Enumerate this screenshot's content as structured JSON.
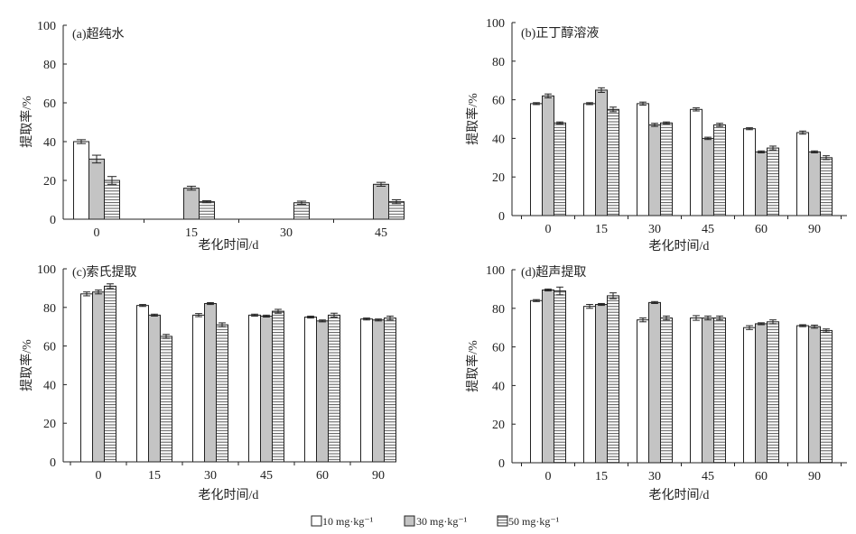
{
  "legend": [
    {
      "label": "10 mg·kg⁻¹",
      "pattern": "white"
    },
    {
      "label": "30 mg·kg⁻¹",
      "pattern": "gray"
    },
    {
      "label": "50 mg·kg⁻¹",
      "pattern": "hatch"
    }
  ],
  "colors": {
    "bar_stroke": "#222222",
    "gray_fill": "#c4c4c4",
    "white_fill": "#ffffff",
    "hatch_line": "#444444"
  },
  "chart_data": [
    {
      "type": "bar",
      "title": "(a)超纯水",
      "xlabel": "老化时间/d",
      "ylabel": "提取率/%",
      "ylim": [
        0,
        100
      ],
      "yticks": [
        0,
        20,
        40,
        60,
        80,
        100
      ],
      "categories": [
        "0",
        "15",
        "30",
        "45"
      ],
      "series": [
        {
          "name": "10 mg·kg⁻¹",
          "values": [
            40,
            null,
            null,
            null
          ],
          "errors": [
            1,
            0,
            0,
            0
          ]
        },
        {
          "name": "30 mg·kg⁻¹",
          "values": [
            31,
            16,
            null,
            18
          ],
          "errors": [
            2,
            1,
            0,
            1
          ]
        },
        {
          "name": "50 mg·kg⁻¹",
          "values": [
            20,
            9,
            8.5,
            9
          ],
          "errors": [
            2,
            0.5,
            0.8,
            1
          ]
        }
      ]
    },
    {
      "type": "bar",
      "title": "(b)正丁醇溶液",
      "xlabel": "老化时间/d",
      "ylabel": "提取率/%",
      "ylim": [
        0,
        100
      ],
      "yticks": [
        0,
        20,
        40,
        60,
        80,
        100
      ],
      "categories": [
        "0",
        "15",
        "30",
        "45",
        "60",
        "90"
      ],
      "series": [
        {
          "name": "10 mg·kg⁻¹",
          "values": [
            58,
            58,
            58,
            55,
            45,
            43
          ],
          "errors": [
            0.5,
            0.5,
            0.8,
            0.8,
            0.5,
            0.8
          ]
        },
        {
          "name": "30 mg·kg⁻¹",
          "values": [
            62,
            65,
            47,
            40,
            33,
            33
          ],
          "errors": [
            1,
            1.2,
            0.8,
            0.6,
            0.5,
            0.5
          ]
        },
        {
          "name": "50 mg·kg⁻¹",
          "values": [
            48,
            55,
            48,
            47,
            35,
            30
          ],
          "errors": [
            0.5,
            1.2,
            0.5,
            0.8,
            1,
            1
          ]
        }
      ]
    },
    {
      "type": "bar",
      "title": "(c)索氏提取",
      "xlabel": "老化时间/d",
      "ylabel": "提取率/%",
      "ylim": [
        0,
        100
      ],
      "yticks": [
        0,
        20,
        40,
        60,
        80,
        100
      ],
      "categories": [
        "0",
        "15",
        "30",
        "45",
        "60",
        "90"
      ],
      "series": [
        {
          "name": "10 mg·kg⁻¹",
          "values": [
            87,
            81,
            76,
            76,
            75,
            74
          ],
          "errors": [
            1,
            0.5,
            0.8,
            0.5,
            0.5,
            0.5
          ]
        },
        {
          "name": "30 mg·kg⁻¹",
          "values": [
            88,
            76,
            82,
            75.5,
            73,
            73.5
          ],
          "errors": [
            1,
            0.5,
            0.5,
            0.5,
            0.5,
            0.5
          ]
        },
        {
          "name": "50 mg·kg⁻¹",
          "values": [
            91,
            65,
            71,
            78,
            76,
            74.5
          ],
          "errors": [
            1.2,
            1,
            1,
            1,
            1,
            1
          ]
        }
      ]
    },
    {
      "type": "bar",
      "title": "(d)超声提取",
      "xlabel": "老化时间/d",
      "ylabel": "提取率/%",
      "ylim": [
        0,
        100
      ],
      "yticks": [
        0,
        20,
        40,
        60,
        80,
        100
      ],
      "categories": [
        "0",
        "15",
        "30",
        "45",
        "60",
        "90"
      ],
      "series": [
        {
          "name": "10 mg·kg⁻¹",
          "values": [
            84,
            81,
            74,
            75,
            70,
            71
          ],
          "errors": [
            0.5,
            1,
            1,
            1.2,
            1,
            0.5
          ]
        },
        {
          "name": "30 mg·kg⁻¹",
          "values": [
            89.5,
            82,
            83,
            75,
            72,
            70.5
          ],
          "errors": [
            0.5,
            0.5,
            0.5,
            1,
            0.5,
            0.8
          ]
        },
        {
          "name": "50 mg·kg⁻¹",
          "values": [
            89,
            86.5,
            75,
            75,
            73,
            68.5
          ],
          "errors": [
            2,
            1.5,
            1,
            1,
            1,
            0.8
          ]
        }
      ]
    }
  ]
}
